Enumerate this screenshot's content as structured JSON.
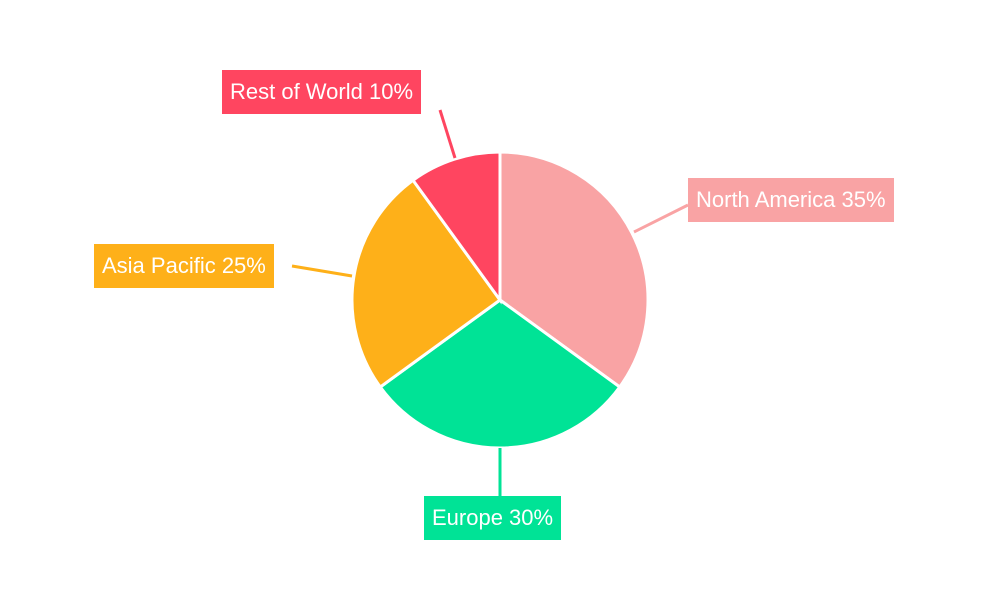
{
  "chart_data": {
    "type": "pie",
    "title": "",
    "categories": [
      "North America",
      "Europe",
      "Asia Pacific",
      "Rest of World"
    ],
    "values": [
      35,
      30,
      25,
      10
    ],
    "unit": "%",
    "labels": [
      "North America 35%",
      "Europe 30%",
      "Asia Pacific 25%",
      "Rest of World 10%"
    ],
    "colors": [
      "#f9a3a4",
      "#00e396",
      "#feb019",
      "#ff4560"
    ],
    "start_angle": "top, clockwise",
    "legend": "none"
  }
}
